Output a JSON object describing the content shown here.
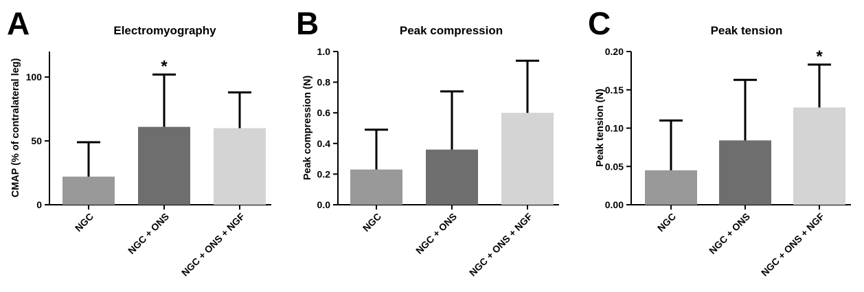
{
  "chart_data": [
    {
      "type": "bar",
      "panel": "A",
      "title": "Electromyography",
      "xlabel": "",
      "ylabel": "CMAP (% of contralateral leg)",
      "categories": [
        "NGC",
        "NGC + ONS",
        "NGC + ONS + NGF"
      ],
      "values": [
        22,
        61,
        60
      ],
      "error_upper": [
        49,
        102,
        88
      ],
      "yticks": [
        "0",
        "50",
        "100"
      ],
      "ytick_values": [
        0,
        50,
        100
      ],
      "ylim": [
        0,
        120
      ],
      "significance": [
        "",
        "*",
        ""
      ],
      "colors": [
        "#999999",
        "#6e6e6e",
        "#d4d4d4"
      ],
      "grid": false
    },
    {
      "type": "bar",
      "panel": "B",
      "title": "Peak compression",
      "xlabel": "",
      "ylabel": "Peak compression (N)",
      "categories": [
        "NGC",
        "NGC + ONS",
        "NGC + ONS + NGF"
      ],
      "values": [
        0.23,
        0.36,
        0.6
      ],
      "error_upper": [
        0.49,
        0.74,
        0.94
      ],
      "yticks": [
        "0.0",
        "0.2",
        "0.4",
        "0.6",
        "0.8",
        "1.0"
      ],
      "ytick_values": [
        0,
        0.2,
        0.4,
        0.6,
        0.8,
        1.0
      ],
      "ylim": [
        0,
        1.0
      ],
      "significance": [
        "",
        "",
        ""
      ],
      "colors": [
        "#999999",
        "#6e6e6e",
        "#d4d4d4"
      ],
      "grid": false
    },
    {
      "type": "bar",
      "panel": "C",
      "title": "Peak tension",
      "xlabel": "",
      "ylabel": "Peak tension (N)",
      "categories": [
        "NGC",
        "NGC + ONS",
        "NGC + ONS + NGF"
      ],
      "values": [
        0.045,
        0.084,
        0.127
      ],
      "error_upper": [
        0.11,
        0.163,
        0.183
      ],
      "yticks": [
        "0.00",
        "0.05",
        "0.10",
        "0.15",
        "0.20"
      ],
      "ytick_values": [
        0,
        0.05,
        0.1,
        0.15,
        0.2
      ],
      "ylim": [
        0,
        0.2
      ],
      "significance": [
        "",
        "",
        "*"
      ],
      "colors": [
        "#999999",
        "#6e6e6e",
        "#d4d4d4"
      ],
      "grid": false
    }
  ]
}
